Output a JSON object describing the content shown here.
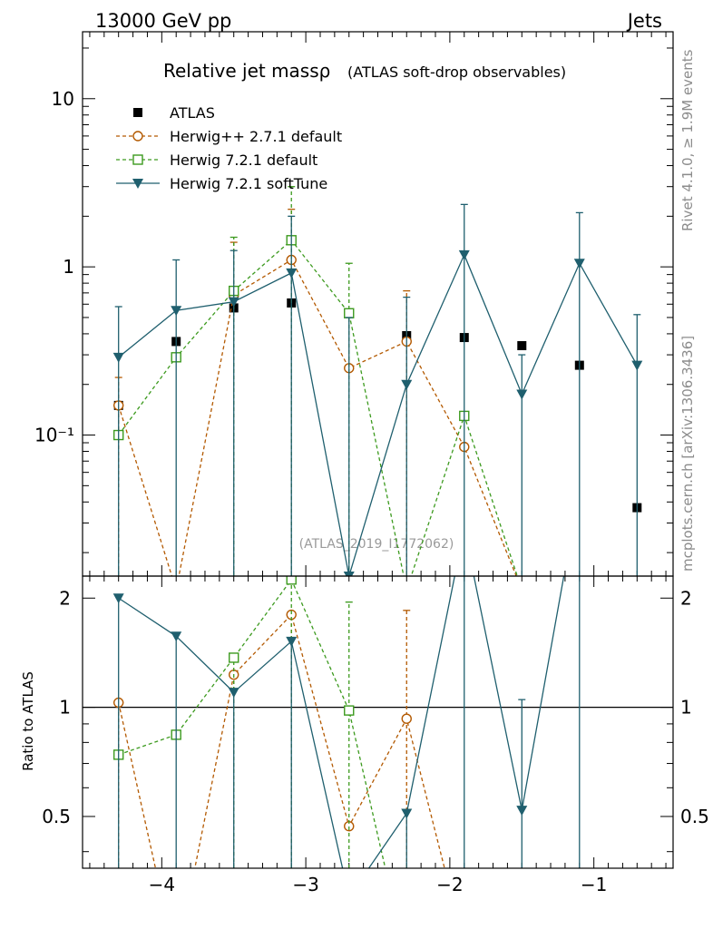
{
  "header": {
    "left": "13000 GeV pp",
    "right": "Jets"
  },
  "side_labels": {
    "rivet": "Rivet 4.1.0, ≥ 1.9M events",
    "mcplots": "mcplots.cern.ch [arXiv:1306.3436]"
  },
  "colors": {
    "atlas": "#000000",
    "herwigpp": "#b35900",
    "herwig721": "#3c9a1e",
    "softtune": "#1f5f6e"
  },
  "chart_data": {
    "type": "scatter",
    "title": "Relative jet massρ",
    "subtitle": "(ATLAS soft-drop observables)",
    "watermark": "(ATLAS_2019_I1772062)",
    "xlabel": "",
    "xlim": [
      -4.55,
      -0.45
    ],
    "x_ticks": [
      -4,
      -3,
      -2,
      -1
    ],
    "x_tick_labels": [
      "−4",
      "−3",
      "−2",
      "−1"
    ],
    "top_panel": {
      "yscale": "log",
      "ylim": [
        0.0145,
        25
      ],
      "y_ticks": [
        {
          "value": 10,
          "label": "10"
        },
        {
          "value": 1,
          "label": "1"
        },
        {
          "value": 0.1,
          "label": "10⁻¹"
        }
      ]
    },
    "ratio_panel": {
      "ylabel": "Ratio to ATLAS",
      "ylim": [
        0.36,
        2.3
      ],
      "ref_line": 1,
      "y_ticks": [
        {
          "value": 2,
          "label": "2"
        },
        {
          "value": 1,
          "label": "1"
        },
        {
          "value": 0.5,
          "label": "0.5"
        }
      ]
    },
    "series": [
      {
        "name": "ATLAS",
        "legend": "ATLAS",
        "marker": "square-filled",
        "color": "#000000",
        "line": "none",
        "x": [
          -4.3,
          -3.9,
          -3.5,
          -3.1,
          -2.7,
          -2.3,
          -1.9,
          -1.5,
          -1.1,
          -0.7
        ],
        "y": [
          0.15,
          0.36,
          0.57,
          0.61,
          0.53,
          0.39,
          0.38,
          0.34,
          0.26,
          0.037
        ]
      },
      {
        "name": "Herwig++ 2.7.1 default",
        "legend": "Herwig++ 2.7.1 default",
        "marker": "circle-open",
        "color": "#b35900",
        "line": "dashed",
        "x": [
          -4.3,
          -3.9,
          -3.5,
          -3.1,
          -2.7,
          -2.3,
          -1.9,
          -1.5,
          -1.1,
          -0.7
        ],
        "y": [
          0.15,
          0.012,
          0.68,
          1.1,
          0.25,
          0.36,
          0.085,
          0.012,
          0.012,
          0.012
        ],
        "err_up": [
          0.22,
          null,
          1.4,
          2.2,
          null,
          0.72,
          null,
          null,
          null,
          null
        ],
        "ratio": [
          1.03,
          0.2,
          1.23,
          1.8,
          0.47,
          0.93,
          0.22,
          null,
          null,
          null
        ],
        "ratio_err_up": [
          null,
          null,
          null,
          null,
          null,
          1.85,
          null,
          null,
          null,
          null
        ]
      },
      {
        "name": "Herwig 7.2.1 default",
        "legend": "Herwig 7.2.1 default",
        "marker": "square-open",
        "color": "#3c9a1e",
        "line": "dashed",
        "x": [
          -4.3,
          -3.9,
          -3.5,
          -3.1,
          -2.7,
          -2.3,
          -1.9,
          -1.5,
          -1.1,
          -0.7
        ],
        "y": [
          0.1,
          0.29,
          0.72,
          1.44,
          0.53,
          0.012,
          0.13,
          0.012,
          0.012,
          0.012
        ],
        "err_up": [
          null,
          null,
          1.5,
          3.0,
          1.05,
          null,
          null,
          null,
          null,
          null
        ],
        "ratio": [
          0.74,
          0.84,
          1.37,
          2.25,
          0.98,
          0.2,
          null,
          null,
          null,
          null
        ],
        "ratio_err_up": [
          null,
          null,
          null,
          null,
          1.95,
          null,
          null,
          null,
          null,
          null
        ]
      },
      {
        "name": "Herwig 7.2.1 softTune",
        "legend": "Herwig 7.2.1 softTune",
        "marker": "triangle-down",
        "color": "#1f5f6e",
        "line": "solid",
        "x": [
          -4.3,
          -3.9,
          -3.5,
          -3.1,
          -2.7,
          -2.3,
          -1.9,
          -1.5,
          -1.1,
          -0.7
        ],
        "y": [
          0.29,
          0.55,
          0.62,
          0.92,
          0.0145,
          0.2,
          1.18,
          0.175,
          1.05,
          0.26
        ],
        "err_up": [
          0.58,
          1.1,
          1.25,
          2.0,
          0.5,
          0.66,
          2.35,
          0.3,
          2.1,
          0.52
        ],
        "ratio": [
          2.0,
          1.57,
          1.1,
          1.52,
          0.3,
          0.51,
          3.1,
          0.52,
          4.0,
          null
        ],
        "ratio_err_up": [
          null,
          null,
          null,
          null,
          null,
          null,
          null,
          1.05,
          null,
          null
        ]
      }
    ]
  }
}
